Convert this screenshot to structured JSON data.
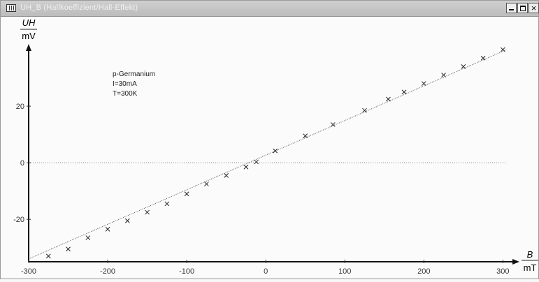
{
  "window": {
    "title": "UH_B (Hallkoeffizient/Hall-Effekt)",
    "minimize_label": "",
    "maximize_label": "",
    "close_label": ""
  },
  "annotation": {
    "line1": "p-Germanium",
    "line2": "I=30mA",
    "line3": "T=300K"
  },
  "chart_data": {
    "type": "scatter",
    "ylabel_num": "UH",
    "ylabel_den": "mV",
    "xlabel_num": "B",
    "xlabel_den": "mT",
    "xlim": [
      -300,
      305
    ],
    "ylim": [
      -35,
      41
    ],
    "xticks": [
      -300,
      -200,
      -100,
      0,
      100,
      200,
      300
    ],
    "xtick_labels": [
      "-300",
      "-200",
      "-100",
      "0",
      "100",
      "200",
      "300"
    ],
    "yticks": [
      20,
      0,
      -20
    ],
    "ytick_labels": [
      "20",
      "0",
      "-20"
    ],
    "zero_line": true,
    "fit_line": {
      "x": [
        -300,
        305
      ],
      "y": [
        -34.0,
        40.0
      ]
    },
    "points": [
      {
        "x": -275,
        "y": -33.0
      },
      {
        "x": -250,
        "y": -30.5
      },
      {
        "x": -225,
        "y": -26.5
      },
      {
        "x": -200,
        "y": -23.5
      },
      {
        "x": -175,
        "y": -20.5
      },
      {
        "x": -150,
        "y": -17.5
      },
      {
        "x": -125,
        "y": -14.5
      },
      {
        "x": -100,
        "y": -11.0
      },
      {
        "x": -75,
        "y": -7.5
      },
      {
        "x": -50,
        "y": -4.5
      },
      {
        "x": -25,
        "y": -1.5
      },
      {
        "x": -12,
        "y": 0.3
      },
      {
        "x": 12,
        "y": 4.2
      },
      {
        "x": 50,
        "y": 9.5
      },
      {
        "x": 85,
        "y": 13.5
      },
      {
        "x": 125,
        "y": 18.5
      },
      {
        "x": 155,
        "y": 22.5
      },
      {
        "x": 175,
        "y": 25.0
      },
      {
        "x": 200,
        "y": 28.0
      },
      {
        "x": 225,
        "y": 31.0
      },
      {
        "x": 250,
        "y": 34.0
      },
      {
        "x": 275,
        "y": 37.0
      },
      {
        "x": 300,
        "y": 40.0
      }
    ]
  }
}
